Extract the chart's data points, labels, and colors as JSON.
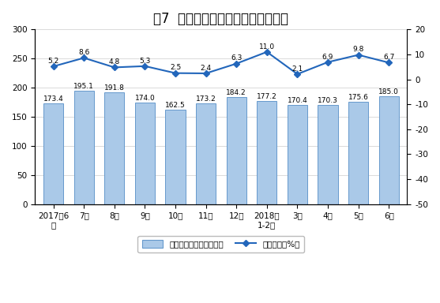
{
  "title": "图7  规模以上工业发电量月度走势图",
  "categories": [
    "2017年6\n月",
    "7月",
    "8月",
    "9月",
    "10月",
    "11月",
    "12月",
    "2018年\n1-2月",
    "3月",
    "4月",
    "5月",
    "6月"
  ],
  "bar_values": [
    173.4,
    195.1,
    191.8,
    174.0,
    162.5,
    173.2,
    184.2,
    177.2,
    170.4,
    170.3,
    175.6,
    185.0
  ],
  "line_values": [
    5.2,
    8.6,
    4.8,
    5.3,
    2.5,
    2.4,
    6.3,
    11.0,
    2.1,
    6.9,
    9.8,
    6.7
  ],
  "bar_color": "#aac9e8",
  "bar_edge_color": "#6699cc",
  "line_color": "#2266bb",
  "line_marker": "D",
  "left_ylim": [
    0,
    300
  ],
  "left_yticks": [
    0,
    50,
    100,
    150,
    200,
    250,
    300
  ],
  "right_ylim": [
    -50,
    20
  ],
  "right_yticks": [
    -50,
    -40,
    -30,
    -20,
    -10,
    0,
    10,
    20
  ],
  "bar_label_fontsize": 6.5,
  "line_label_fontsize": 6.5,
  "title_fontsize": 12,
  "axis_fontsize": 7.5,
  "legend_label_bar": "日均发电量（亿千瓦时）",
  "legend_label_line": "当月增速（%）",
  "background_color": "#ffffff",
  "grid_color": "#cccccc"
}
